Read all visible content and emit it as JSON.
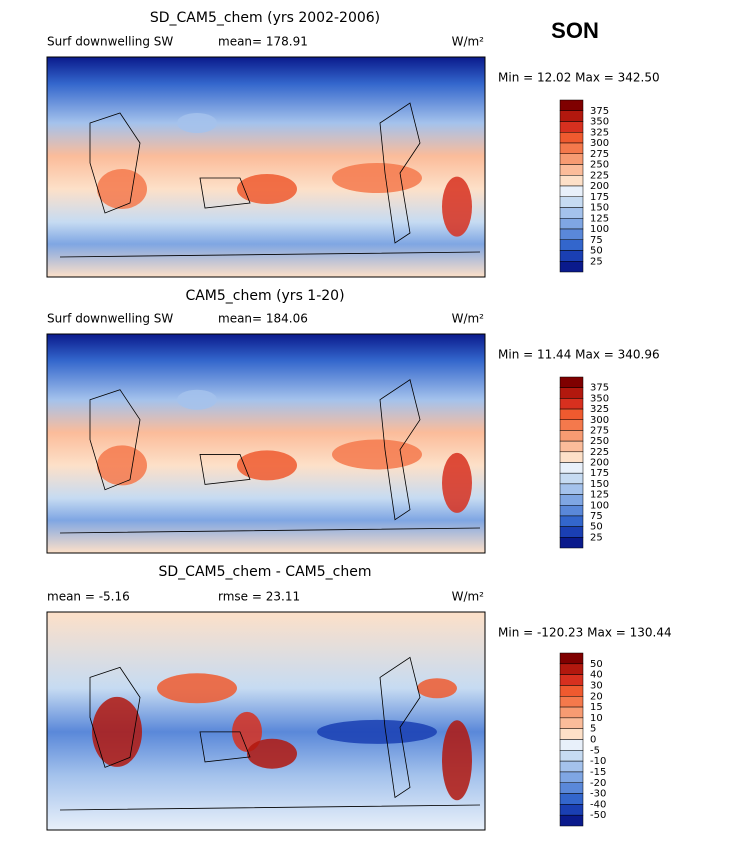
{
  "season": "SON",
  "panels": [
    {
      "title": "SD_CAM5_chem (yrs 2002-2006)",
      "variable": "Surf downwelling SW",
      "stat1": "mean= 178.91",
      "units": "W/m²",
      "range": "Min =  12.02 Max = 342.50",
      "colorbar": [
        375,
        350,
        325,
        300,
        275,
        250,
        225,
        200,
        175,
        150,
        125,
        100,
        75,
        50,
        25
      ]
    },
    {
      "title": "CAM5_chem (yrs 1-20)",
      "variable": "Surf downwelling SW",
      "stat1": "mean= 184.06",
      "units": "W/m²",
      "range": "Min =  11.44 Max = 340.96",
      "colorbar": [
        375,
        350,
        325,
        300,
        275,
        250,
        225,
        200,
        175,
        150,
        125,
        100,
        75,
        50,
        25
      ]
    },
    {
      "title": "SD_CAM5_chem - CAM5_chem",
      "stat1": "mean =  -5.16",
      "stat2": "rmse =  23.11",
      "units": "W/m²",
      "range": "Min = -120.23 Max = 130.44",
      "colorbar": [
        50,
        40,
        30,
        20,
        15,
        10,
        5,
        0,
        -5,
        -10,
        -15,
        -20,
        -30,
        -40,
        -50
      ]
    }
  ]
}
